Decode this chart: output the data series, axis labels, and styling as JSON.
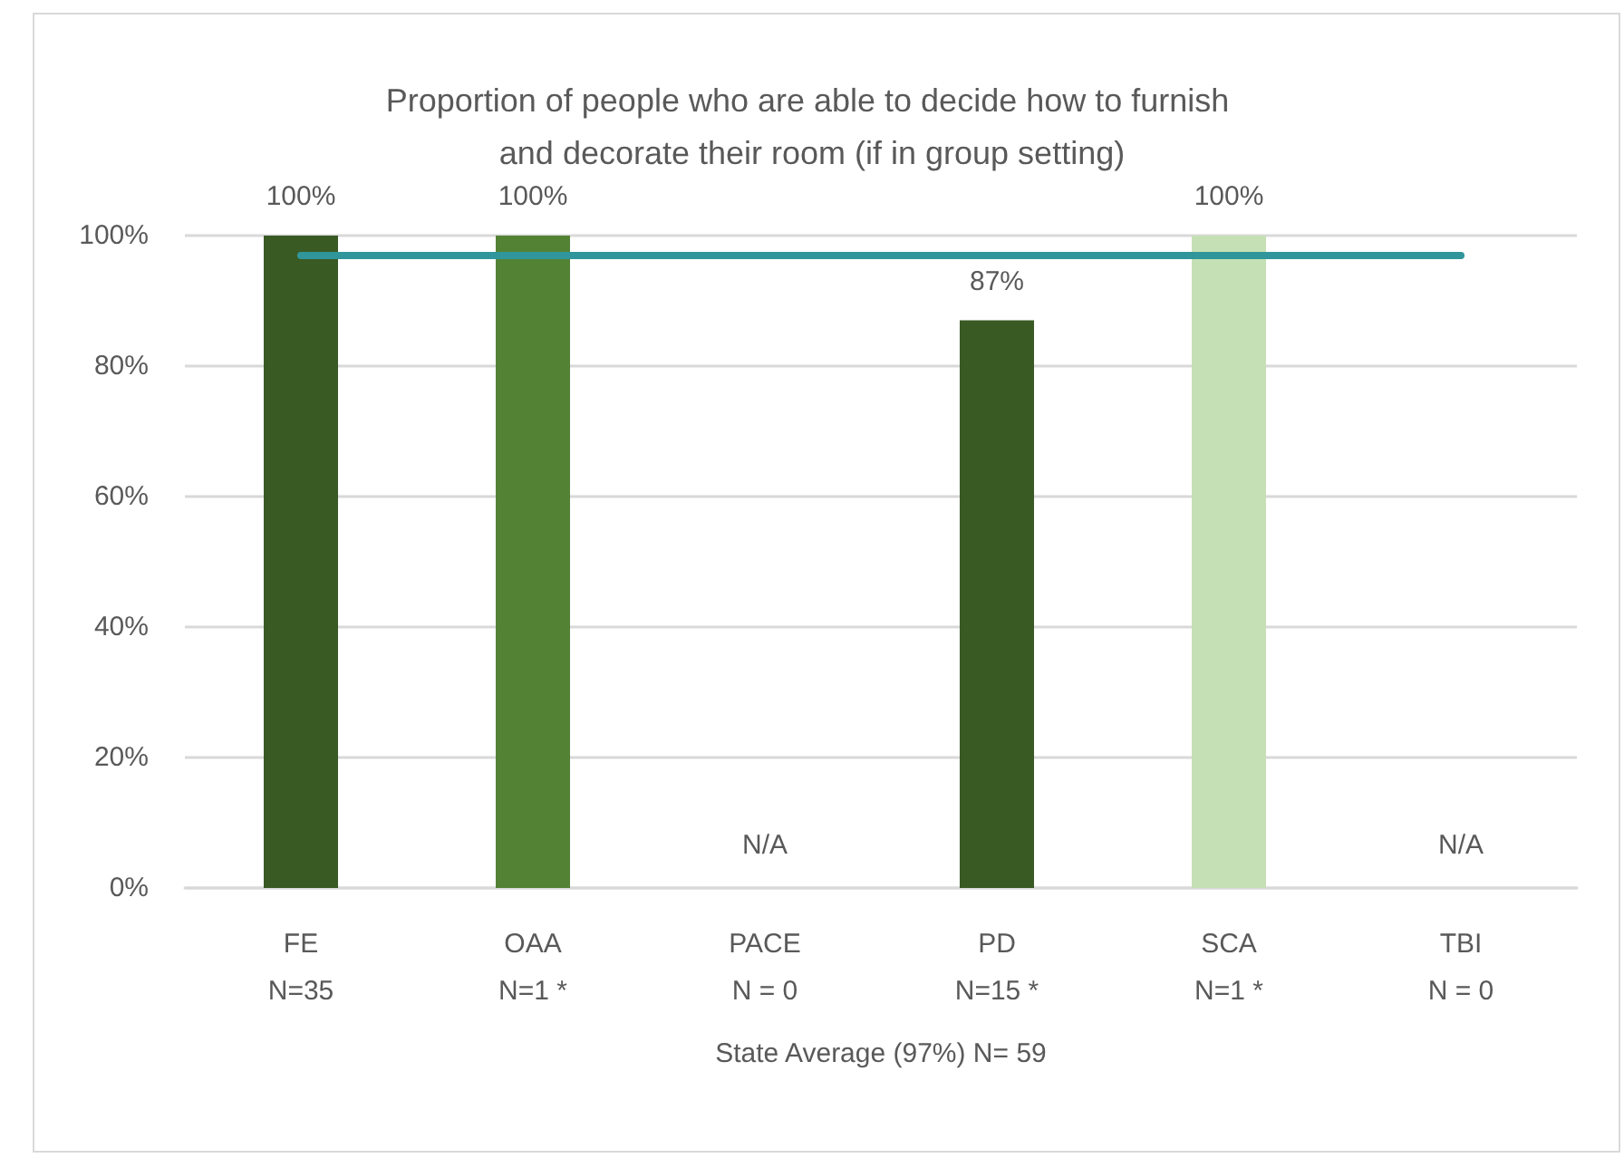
{
  "chart_data": {
    "type": "bar",
    "title": "Proportion of people who are able to decide how to furnish and decorate their room (if in group setting)",
    "xlabel": "State Average (97%) N= 59",
    "categories": [
      "FE\nN=35",
      "OAA\nN=1 *",
      "PACE\nN = 0",
      "PD\nN=15 *",
      "SCA\nN=1 *",
      "TBI\nN = 0"
    ],
    "values": [
      100,
      100,
      null,
      87,
      100,
      null
    ],
    "colors": [
      "#3a5a24",
      "#548235",
      null,
      "#3a5a24",
      "#c5e0b4",
      null
    ],
    "value_labels": [
      "100%",
      "100%",
      "N/A",
      "87%",
      "100%",
      "N/A"
    ],
    "ylim": [
      0,
      100
    ],
    "yticks": [
      {
        "value": 0,
        "label": "0%"
      },
      {
        "value": 20,
        "label": "20%"
      },
      {
        "value": 40,
        "label": "40%"
      },
      {
        "value": 60,
        "label": "60%"
      },
      {
        "value": 80,
        "label": "80%"
      },
      {
        "value": 100,
        "label": "100%"
      }
    ],
    "grid": "y",
    "ref_lines": [
      {
        "axis": "y",
        "value": 97,
        "color": "#31969b"
      }
    ]
  }
}
